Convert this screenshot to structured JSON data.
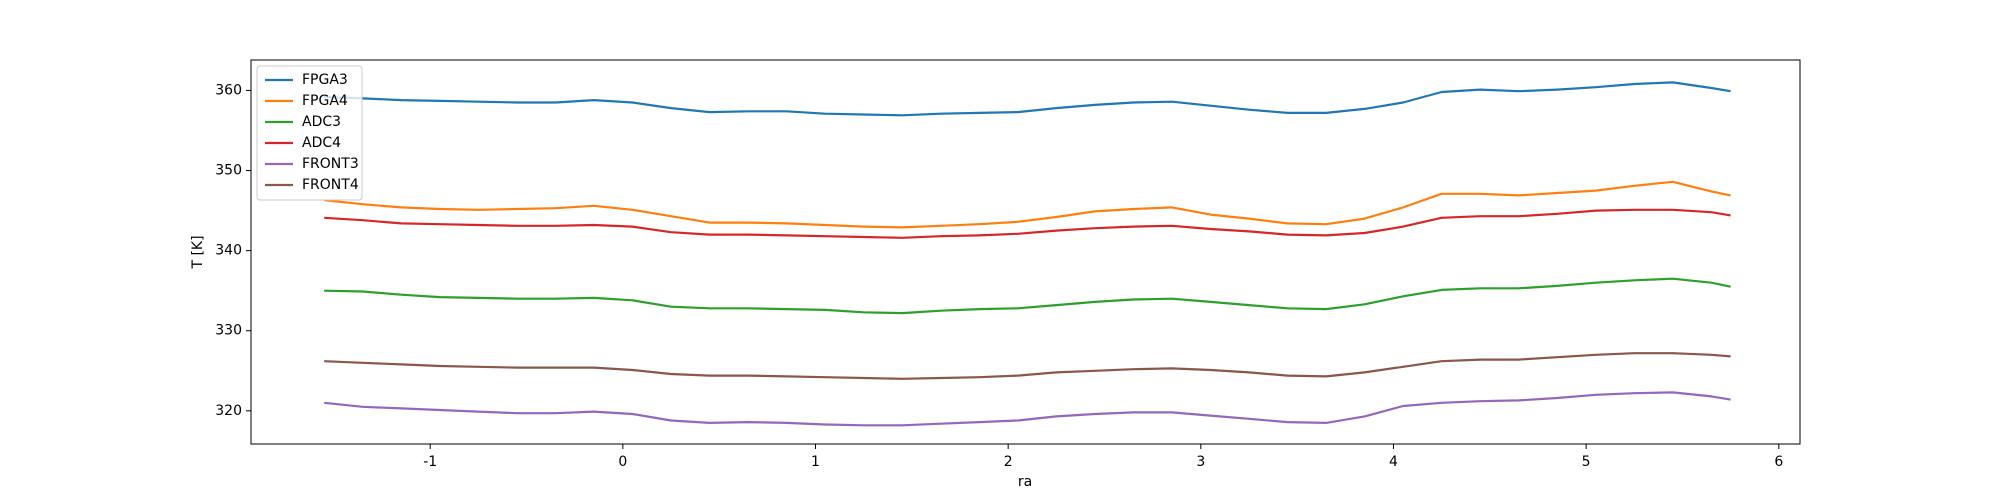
{
  "chart_data": {
    "type": "line",
    "xlabel": "ra",
    "ylabel": "T [K]",
    "x": [
      -1.55,
      -1.35,
      -1.15,
      -0.95,
      -0.75,
      -0.55,
      -0.35,
      -0.15,
      0.05,
      0.25,
      0.45,
      0.65,
      0.85,
      1.05,
      1.25,
      1.45,
      1.65,
      1.85,
      2.05,
      2.25,
      2.45,
      2.65,
      2.85,
      3.05,
      3.25,
      3.45,
      3.65,
      3.85,
      4.05,
      4.25,
      4.45,
      4.65,
      4.85,
      5.05,
      5.25,
      5.45,
      5.65,
      5.75
    ],
    "series": [
      {
        "name": "FPGA3",
        "color": "#1f77b4",
        "values": [
          359.2,
          359,
          358.8,
          358.7,
          358.6,
          358.5,
          358.5,
          358.8,
          358.5,
          357.8,
          357.3,
          357.4,
          357.4,
          357.1,
          357,
          356.9,
          357.1,
          357.2,
          357.3,
          357.8,
          358.2,
          358.5,
          358.6,
          358.1,
          357.6,
          357.2,
          357.2,
          357.7,
          358.5,
          359.8,
          360.1,
          359.9,
          360.1,
          360.4,
          360.8,
          361,
          360.3,
          359.9
        ]
      },
      {
        "name": "FPGA4",
        "color": "#ff7f0e",
        "values": [
          346.3,
          345.8,
          345.4,
          345.2,
          345.1,
          345.2,
          345.3,
          345.6,
          345.1,
          344.3,
          343.5,
          343.5,
          343.4,
          343.2,
          343,
          342.9,
          343.1,
          343.3,
          343.6,
          344.2,
          344.9,
          345.2,
          345.4,
          344.5,
          344,
          343.4,
          343.3,
          344,
          345.4,
          347.1,
          347.1,
          346.9,
          347.2,
          347.5,
          348.1,
          348.6,
          347.4,
          346.9
        ]
      },
      {
        "name": "ADC3",
        "color": "#2ca02c",
        "values": [
          335,
          334.9,
          334.5,
          334.2,
          334.1,
          334,
          334,
          334.1,
          333.8,
          333,
          332.8,
          332.8,
          332.7,
          332.6,
          332.3,
          332.2,
          332.5,
          332.7,
          332.8,
          333.2,
          333.6,
          333.9,
          334,
          333.6,
          333.2,
          332.8,
          332.7,
          333.3,
          334.3,
          335.1,
          335.3,
          335.3,
          335.6,
          336,
          336.3,
          336.5,
          336,
          335.5
        ]
      },
      {
        "name": "ADC4",
        "color": "#d62728",
        "values": [
          344.1,
          343.8,
          343.4,
          343.3,
          343.2,
          343.1,
          343.1,
          343.2,
          343,
          342.3,
          342,
          342,
          341.9,
          341.8,
          341.7,
          341.6,
          341.8,
          341.9,
          342.1,
          342.5,
          342.8,
          343,
          343.1,
          342.7,
          342.4,
          342,
          341.9,
          342.2,
          343,
          344.1,
          344.3,
          344.3,
          344.6,
          345,
          345.1,
          345.1,
          344.8,
          344.4
        ]
      },
      {
        "name": "FRONT3",
        "color": "#9467bd",
        "values": [
          321,
          320.5,
          320.3,
          320.1,
          319.9,
          319.7,
          319.7,
          319.9,
          319.6,
          318.8,
          318.5,
          318.6,
          318.5,
          318.3,
          318.2,
          318.2,
          318.4,
          318.6,
          318.8,
          319.3,
          319.6,
          319.8,
          319.8,
          319.4,
          319,
          318.6,
          318.5,
          319.3,
          320.6,
          321,
          321.2,
          321.3,
          321.6,
          322,
          322.2,
          322.3,
          321.8,
          321.4
        ]
      },
      {
        "name": "FRONT4",
        "color": "#8c564b",
        "values": [
          326.2,
          326,
          325.8,
          325.6,
          325.5,
          325.4,
          325.4,
          325.4,
          325.1,
          324.6,
          324.4,
          324.4,
          324.3,
          324.2,
          324.1,
          324,
          324.1,
          324.2,
          324.4,
          324.8,
          325,
          325.2,
          325.3,
          325.1,
          324.8,
          324.4,
          324.3,
          324.8,
          325.5,
          326.2,
          326.4,
          326.4,
          326.7,
          327,
          327.2,
          327.2,
          327,
          326.8
        ]
      }
    ],
    "xlim": [
      -1.93,
      6.11
    ],
    "xticks": [
      -1,
      0,
      1,
      2,
      3,
      4,
      5,
      6
    ],
    "ylim": [
      315.86,
      363.8
    ],
    "yticks": [
      320,
      330,
      340,
      350,
      360
    ],
    "legend": "upper left"
  }
}
